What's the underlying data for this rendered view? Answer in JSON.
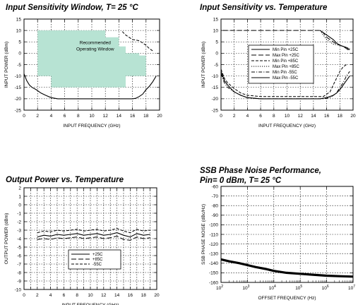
{
  "chart_data": [
    {
      "id": "c1",
      "type": "line",
      "title": "Input Sensitivity Window, T= 25 °C",
      "xlabel": "INPUT FREQUENCY (GHz)",
      "ylabel": "INPUT POWER (dBm)",
      "xlim": [
        0,
        20
      ],
      "ylim": [
        -25,
        15
      ],
      "xticks": [
        0,
        2,
        4,
        6,
        8,
        10,
        12,
        14,
        16,
        18,
        20
      ],
      "yticks": [
        -25,
        -20,
        -15,
        -10,
        -5,
        0,
        5,
        10,
        15
      ],
      "grid": true,
      "window": {
        "label_lines": [
          "Recommended",
          "Operating Window"
        ],
        "color": "#b7e3d3",
        "polygon": [
          [
            2,
            10
          ],
          [
            12,
            10
          ],
          [
            12,
            7
          ],
          [
            14,
            7
          ],
          [
            14,
            3
          ],
          [
            15,
            3
          ],
          [
            15,
            0
          ],
          [
            17,
            0
          ],
          [
            17,
            -1
          ],
          [
            18,
            -1
          ],
          [
            18,
            -10
          ],
          [
            15,
            -10
          ],
          [
            15,
            -15
          ],
          [
            4,
            -15
          ],
          [
            4,
            -10
          ],
          [
            2,
            -10
          ]
        ]
      },
      "series": [
        {
          "style": "solid",
          "x": [
            0,
            0.4,
            0.8,
            1.2,
            1.8,
            2.5,
            3.2,
            4,
            5,
            6,
            8,
            10,
            12,
            14,
            15,
            16,
            16.5,
            17,
            17.5,
            18,
            18.5,
            19,
            19.5
          ],
          "y": [
            -9,
            -12,
            -14,
            -15,
            -16,
            -17.5,
            -18.5,
            -19.5,
            -20,
            -20,
            -20,
            -20,
            -20,
            -20,
            -20,
            -20,
            -19.8,
            -19,
            -18,
            -16,
            -14.5,
            -12.5,
            -10
          ]
        },
        {
          "style": "dashed",
          "x": [
            14.5,
            15,
            15.5,
            16,
            16.5,
            17,
            17.5,
            18,
            18.5,
            19
          ],
          "y": [
            9.5,
            8,
            7,
            6,
            5.8,
            5.5,
            4.5,
            3.5,
            2,
            1
          ]
        }
      ]
    },
    {
      "id": "c2",
      "type": "line",
      "title": "Input Sensitivity vs. Temperature",
      "xlabel": "INPUT FREQUENCY (GHz)",
      "ylabel": "INPUT POWER (dBm)",
      "xlim": [
        0,
        20
      ],
      "ylim": [
        -25,
        15
      ],
      "xticks": [
        0,
        2,
        4,
        6,
        8,
        10,
        12,
        14,
        16,
        18,
        20
      ],
      "yticks": [
        -25,
        -20,
        -15,
        -10,
        -5,
        0,
        5,
        10,
        15
      ],
      "grid": true,
      "legend_entries": [
        "Min Pin +25C",
        "Max Pin +25C",
        "Min Pin +85C",
        "Max Pin +85C",
        "Min Pin -55C",
        "Max Pin -55C"
      ],
      "series": [
        {
          "name": "Min Pin +25C",
          "style": "solid",
          "x": [
            0,
            0.5,
            1,
            1.5,
            2,
            3,
            4,
            6,
            10,
            14,
            15,
            16,
            17,
            17.5,
            18,
            18.5,
            19,
            19.5
          ],
          "y": [
            -8,
            -12,
            -14,
            -15.5,
            -17,
            -18.5,
            -19.5,
            -20,
            -20,
            -20,
            -20,
            -19.5,
            -18.5,
            -17.5,
            -16,
            -14,
            -12,
            -10
          ]
        },
        {
          "name": "Max Pin +25C",
          "style": "longdash",
          "x": [
            0.3,
            15,
            15.5,
            16,
            17,
            17.5,
            18,
            18.5,
            19,
            19.5
          ],
          "y": [
            10,
            10,
            9,
            7,
            5,
            4,
            3.5,
            3,
            2,
            1
          ]
        },
        {
          "name": "Min Pin +85C",
          "style": "dashed",
          "x": [
            0,
            0.5,
            1,
            2,
            3,
            4,
            6,
            10,
            14,
            15.5,
            16.5,
            17,
            17.5,
            18,
            18.5,
            19
          ],
          "y": [
            -7,
            -11,
            -13,
            -15.5,
            -17.5,
            -18.5,
            -19,
            -19,
            -19,
            -19,
            -17,
            -14,
            -11,
            -8,
            -6,
            -5
          ]
        },
        {
          "name": "Max Pin +85C",
          "style": "dotted",
          "x": [
            15,
            15.5,
            16,
            16.5,
            17,
            18,
            18.5,
            19,
            19.5
          ],
          "y": [
            10,
            8,
            6,
            5,
            4,
            3.5,
            3,
            2.5,
            2
          ]
        },
        {
          "name": "Min Pin -55C",
          "style": "dashdot",
          "x": [
            0,
            0.5,
            1,
            2,
            3,
            4,
            6,
            10,
            14,
            15.5,
            16.5,
            17.5,
            18,
            18.5,
            19,
            19.5
          ],
          "y": [
            -9,
            -13,
            -15,
            -17,
            -18.5,
            -19.5,
            -20,
            -20,
            -20,
            -20,
            -19.5,
            -17.5,
            -15,
            -13,
            -10,
            -8
          ]
        },
        {
          "name": "Max Pin -55C",
          "style": "solid",
          "x": [
            15,
            16,
            17,
            17.5,
            18,
            18.5,
            19,
            19.5
          ],
          "y": [
            10,
            8,
            6,
            4.5,
            3.5,
            3,
            2.5,
            1.5
          ]
        }
      ]
    },
    {
      "id": "c3",
      "type": "line",
      "title": "Output Power vs. Temperature",
      "xlabel": "INPUT FREQUENCY (GHz)",
      "ylabel": "OUTPUT POWER (dBm)",
      "xlim": [
        0,
        20
      ],
      "ylim": [
        -10,
        2
      ],
      "xticks": [
        0,
        1,
        2,
        3,
        4,
        5,
        6,
        7,
        8,
        9,
        10,
        11,
        12,
        13,
        14,
        15,
        16,
        17,
        18,
        19,
        20
      ],
      "xtick_labels": [
        "0",
        "",
        "2",
        "",
        "4",
        "",
        "6",
        "",
        "8",
        "",
        "10",
        "",
        "12",
        "",
        "14",
        "",
        "16",
        "",
        "18",
        "",
        "20"
      ],
      "yticks": [
        -10,
        -9,
        -8,
        -7,
        -6,
        -5,
        -4,
        -3,
        -2,
        -1,
        0,
        1,
        2
      ],
      "grid": true,
      "legend_entries": [
        "+25C",
        "+85C",
        "-55C"
      ],
      "series": [
        {
          "name": "+25C",
          "style": "solid",
          "x": [
            2,
            3,
            4,
            5,
            6,
            7,
            8,
            9,
            10,
            11,
            12,
            13,
            14,
            15,
            16,
            17,
            18,
            19
          ],
          "y": [
            -3.8,
            -3.6,
            -3.7,
            -3.5,
            -3.6,
            -3.5,
            -3.4,
            -3.6,
            -3.5,
            -3.4,
            -3.6,
            -3.5,
            -3.3,
            -3.6,
            -3.8,
            -3.4,
            -3.6,
            -3.5
          ]
        },
        {
          "name": "+85C",
          "style": "longdash",
          "x": [
            2,
            3,
            4,
            5,
            6,
            7,
            8,
            9,
            10,
            11,
            12,
            13,
            14,
            15,
            16,
            17,
            18,
            19
          ],
          "y": [
            -4.1,
            -4,
            -4.1,
            -3.9,
            -4,
            -3.9,
            -3.8,
            -4,
            -3.9,
            -3.8,
            -4,
            -3.9,
            -3.7,
            -4.1,
            -4.2,
            -3.8,
            -4,
            -3.9
          ]
        },
        {
          "name": "-55C",
          "style": "dashed",
          "x": [
            2,
            3,
            4,
            5,
            6,
            7,
            8,
            9,
            10,
            11,
            12,
            13,
            14,
            15,
            16,
            17,
            18,
            19
          ],
          "y": [
            -3.3,
            -3.1,
            -3.2,
            -3,
            -3.1,
            -3,
            -2.9,
            -3.1,
            -3,
            -2.9,
            -3.1,
            -3,
            -2.8,
            -3.1,
            -3.3,
            -2.9,
            -3.1,
            -3
          ]
        }
      ]
    },
    {
      "id": "c4",
      "type": "line",
      "title_lines": [
        "SSB Phase Noise Performance,",
        "Pin= 0 dBm, T= 25 °C"
      ],
      "xlabel": "OFFSET FREQUENCY (Hz)",
      "ylabel": "SSB PHASE NOISE (dBc/Hz)",
      "xscale": "log",
      "xlim": [
        100,
        10000000
      ],
      "ylim": [
        -160,
        -60
      ],
      "xticks": [
        100,
        1000,
        10000,
        100000,
        1000000,
        10000000
      ],
      "xtick_exponents": [
        "2",
        "3",
        "4",
        "5",
        "6",
        "7"
      ],
      "xtick_base": "10",
      "yticks": [
        -160,
        -150,
        -140,
        -130,
        -120,
        -110,
        -100,
        -90,
        -80,
        -70,
        -60
      ],
      "grid": true,
      "series": [
        {
          "style": "thick",
          "x": [
            100,
            200,
            500,
            1000,
            2000,
            5000,
            10000,
            30000,
            100000,
            300000,
            1000000,
            3000000,
            10000000
          ],
          "y": [
            -136,
            -138,
            -140,
            -142,
            -144,
            -146,
            -148,
            -150,
            -151,
            -152,
            -153,
            -153.5,
            -154
          ]
        }
      ]
    }
  ]
}
